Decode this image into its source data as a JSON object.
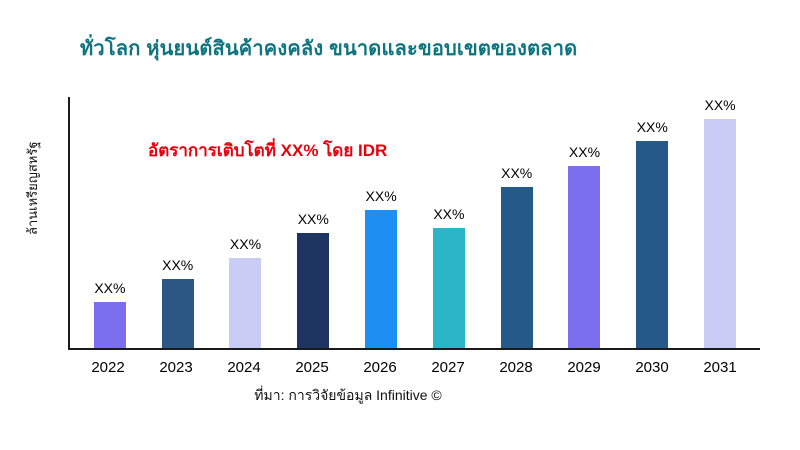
{
  "title": "ทั่วโลก หุ่นยนต์สินค้าคงคลัง ขนาดและขอบเขตของตลาด",
  "ylabel": "ล้านเหรียญสหรัฐ",
  "annotation": {
    "text": "อัตราการเติบโตที่ XX% โดย IDR"
  },
  "source": "ที่มา: การวิจัยข้อมูล Infinitive ©",
  "colors": {
    "title": "#0e7480",
    "annotation": "#e8000d",
    "axis": "#1a1a1a"
  },
  "chart_data": {
    "type": "bar",
    "title": "ทั่วโลก หุ่นยนต์สินค้าคงคลัง ขนาดและขอบเขตของตลาด",
    "xlabel": "",
    "ylabel": "ล้านเหรียญสหรัฐ",
    "categories": [
      "2022",
      "2023",
      "2024",
      "2025",
      "2026",
      "2027",
      "2028",
      "2029",
      "2030",
      "2031"
    ],
    "values": [
      20,
      30,
      39,
      50,
      60,
      52,
      70,
      79,
      90,
      100
    ],
    "value_note": "relative heights, actual values masked as XX% in source image",
    "ylim": [
      0,
      100
    ],
    "grid": false,
    "legend": "none",
    "bar_labels": [
      "XX%",
      "XX%",
      "XX%",
      "XX%",
      "XX%",
      "XX%",
      "XX%",
      "XX%",
      "XX%",
      "XX%"
    ],
    "bar_colors": [
      "#7b6ff0",
      "#2a5784",
      "#c9cdf5",
      "#1e3461",
      "#1e8ff2",
      "#2ab5c9",
      "#25598a",
      "#7b6ff0",
      "#25598a",
      "#c9cdf5"
    ]
  }
}
